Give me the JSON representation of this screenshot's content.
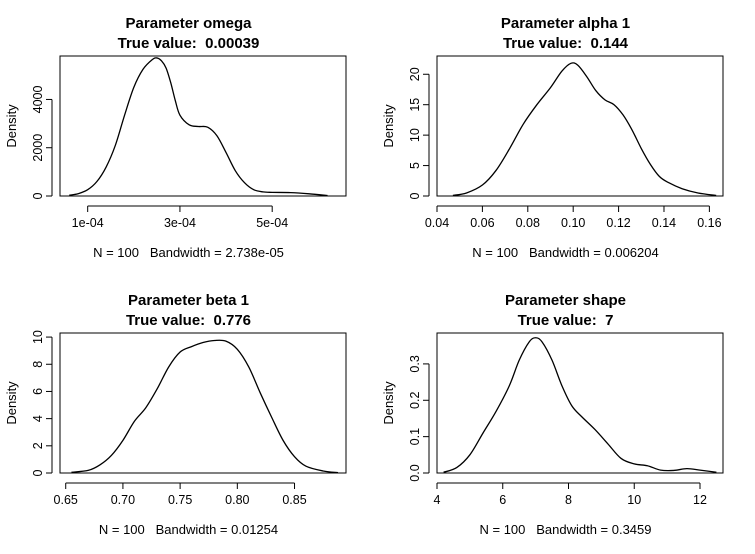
{
  "chart_data": [
    {
      "type": "line",
      "title": "Parameter omega",
      "subtitle": "True value:  0.00039",
      "xlabel": "N = 100   Bandwidth = 2.738e-05",
      "ylabel": "Density",
      "xlim": [
        4e-05,
        0.00066
      ],
      "ylim": [
        0,
        5800
      ],
      "xticks": [
        0.0001,
        0.0003,
        0.0005
      ],
      "xtick_labels": [
        "1e-04",
        "3e-04",
        "5e-04"
      ],
      "yticks": [
        0,
        2000,
        4000
      ],
      "ytick_labels": [
        "0",
        "2000",
        "4000"
      ],
      "series": [
        {
          "x": [
            6e-05,
            8e-05,
            0.0001,
            0.00012,
            0.00014,
            0.00016,
            0.00018,
            0.0002,
            0.00022,
            0.00024,
            0.00025,
            0.00026,
            0.00027,
            0.00028,
            0.00029,
            0.0003,
            0.00032,
            0.00034,
            0.00036,
            0.00038,
            0.0004,
            0.00042,
            0.00044,
            0.00046,
            0.00048,
            0.0005,
            0.00054,
            0.00058,
            0.00062
          ],
          "y": [
            30,
            100,
            260,
            600,
            1200,
            2100,
            3350,
            4500,
            5250,
            5650,
            5720,
            5600,
            5300,
            4700,
            3950,
            3350,
            2950,
            2880,
            2850,
            2500,
            1800,
            1050,
            550,
            260,
            170,
            150,
            140,
            90,
            20
          ]
        }
      ]
    },
    {
      "type": "line",
      "title": "Parameter alpha 1",
      "subtitle": "True value:  0.144",
      "xlabel": "N = 100   Bandwidth = 0.006204",
      "ylabel": "Density",
      "xlim": [
        0.04,
        0.166
      ],
      "ylim": [
        0,
        23
      ],
      "xticks": [
        0.04,
        0.06,
        0.08,
        0.1,
        0.12,
        0.14,
        0.16
      ],
      "xtick_labels": [
        "0.04",
        "0.06",
        "0.08",
        "0.10",
        "0.12",
        "0.14",
        "0.16"
      ],
      "yticks": [
        0,
        5,
        10,
        15,
        20
      ],
      "ytick_labels": [
        "0",
        "5",
        "10",
        "15",
        "20"
      ],
      "series": [
        {
          "x": [
            0.047,
            0.053,
            0.06,
            0.066,
            0.072,
            0.078,
            0.084,
            0.09,
            0.095,
            0.099,
            0.102,
            0.106,
            0.11,
            0.114,
            0.118,
            0.122,
            0.126,
            0.13,
            0.134,
            0.138,
            0.142,
            0.148,
            0.155,
            0.163
          ],
          "y": [
            0.1,
            0.5,
            1.8,
            4.2,
            7.8,
            11.8,
            15.0,
            17.8,
            20.5,
            21.8,
            21.5,
            19.6,
            17.3,
            15.8,
            15.0,
            13.3,
            10.8,
            7.8,
            5.2,
            3.2,
            2.2,
            1.2,
            0.5,
            0.1
          ]
        }
      ]
    },
    {
      "type": "line",
      "title": "Parameter beta 1",
      "subtitle": "True value:  0.776",
      "xlabel": "N = 100   Bandwidth = 0.01254",
      "ylabel": "Density",
      "xlim": [
        0.645,
        0.895
      ],
      "ylim": [
        0,
        10.3
      ],
      "xticks": [
        0.65,
        0.7,
        0.75,
        0.8,
        0.85
      ],
      "xtick_labels": [
        "0.65",
        "0.70",
        "0.75",
        "0.80",
        "0.85"
      ],
      "yticks": [
        0,
        2,
        4,
        6,
        8,
        10
      ],
      "ytick_labels": [
        "0",
        "2",
        "4",
        "6",
        "8",
        "10"
      ],
      "series": [
        {
          "x": [
            0.655,
            0.67,
            0.68,
            0.69,
            0.7,
            0.71,
            0.72,
            0.73,
            0.74,
            0.75,
            0.76,
            0.77,
            0.78,
            0.79,
            0.8,
            0.81,
            0.82,
            0.83,
            0.84,
            0.85,
            0.86,
            0.875,
            0.888
          ],
          "y": [
            0.05,
            0.2,
            0.6,
            1.3,
            2.4,
            3.8,
            4.8,
            6.2,
            7.8,
            8.9,
            9.3,
            9.6,
            9.75,
            9.7,
            9.1,
            7.8,
            5.9,
            4.1,
            2.4,
            1.2,
            0.5,
            0.15,
            0.03
          ]
        }
      ]
    },
    {
      "type": "line",
      "title": "Parameter shape",
      "subtitle": "True value:  7",
      "xlabel": "N = 100   Bandwidth = 0.3459",
      "ylabel": "Density",
      "xlim": [
        4.0,
        12.7
      ],
      "ylim": [
        0,
        0.385
      ],
      "xticks": [
        4,
        6,
        8,
        10,
        12
      ],
      "xtick_labels": [
        "4",
        "6",
        "8",
        "10",
        "12"
      ],
      "yticks": [
        0.0,
        0.1,
        0.2,
        0.3
      ],
      "ytick_labels": [
        "0.0",
        "0.1",
        "0.2",
        "0.3"
      ],
      "series": [
        {
          "x": [
            4.2,
            4.6,
            5.0,
            5.4,
            5.8,
            6.2,
            6.5,
            6.8,
            7.0,
            7.2,
            7.5,
            7.8,
            8.1,
            8.4,
            8.8,
            9.2,
            9.6,
            10.0,
            10.4,
            10.8,
            11.2,
            11.6,
            12.0,
            12.5
          ],
          "y": [
            0.002,
            0.015,
            0.05,
            0.11,
            0.17,
            0.24,
            0.31,
            0.36,
            0.372,
            0.36,
            0.31,
            0.24,
            0.185,
            0.155,
            0.12,
            0.08,
            0.04,
            0.025,
            0.02,
            0.008,
            0.007,
            0.012,
            0.008,
            0.002
          ]
        }
      ]
    }
  ]
}
